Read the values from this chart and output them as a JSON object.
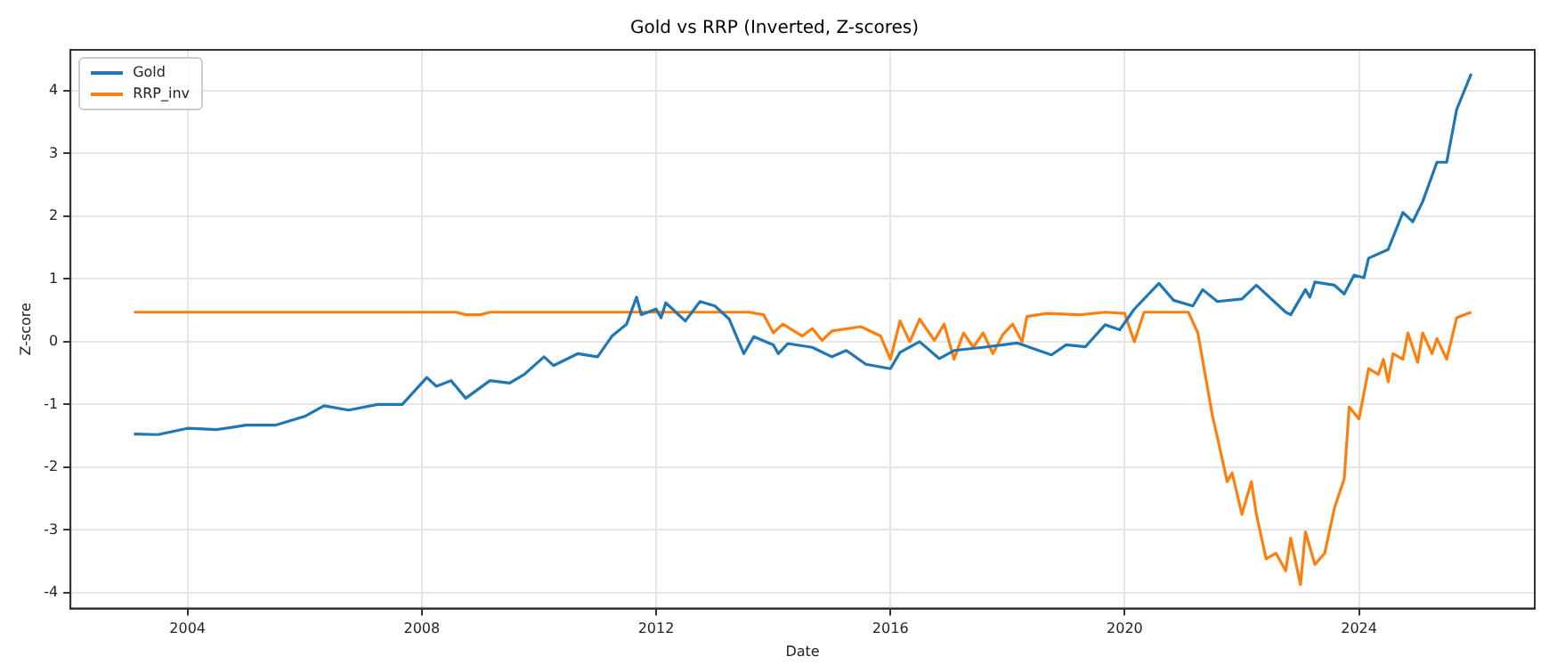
{
  "chart_data": {
    "type": "line",
    "title": "Gold vs RRP (Inverted, Z-scores)",
    "xlabel": "Date",
    "ylabel": "Z-score",
    "xlim": [
      "2002",
      "2027-01"
    ],
    "xticks": [
      "2004",
      "2008",
      "2012",
      "2016",
      "2020",
      "2024"
    ],
    "ylim": [
      -4.25,
      4.65
    ],
    "yticks": [
      -4,
      -3,
      -2,
      -1,
      0,
      1,
      2,
      3,
      4
    ],
    "grid": true,
    "legend": "top left",
    "marker": "none",
    "line_style": "solid",
    "series": [
      {
        "name": "Gold",
        "color": "#1f77b4",
        "x": [
          "2003-02",
          "2003-07",
          "2004-01",
          "2004-07",
          "2005-01",
          "2005-07",
          "2006-01",
          "2006-05",
          "2006-10",
          "2007-04",
          "2007-09",
          "2008-02",
          "2008-04",
          "2008-07",
          "2008-10",
          "2009-03",
          "2009-07",
          "2009-10",
          "2010-02",
          "2010-04",
          "2010-09",
          "2011-01",
          "2011-04",
          "2011-07",
          "2011-09",
          "2011-10",
          "2012-01",
          "2012-02",
          "2012-03",
          "2012-07",
          "2012-10",
          "2013-01",
          "2013-04",
          "2013-07",
          "2013-09",
          "2014-01",
          "2014-02",
          "2014-04",
          "2014-09",
          "2015-01",
          "2015-04",
          "2015-08",
          "2016-01",
          "2016-03",
          "2016-07",
          "2016-11",
          "2017-02",
          "2017-08",
          "2018-03",
          "2018-10",
          "2019-01",
          "2019-05",
          "2019-09",
          "2019-12",
          "2020-03",
          "2020-08",
          "2020-11",
          "2021-03",
          "2021-05",
          "2021-08",
          "2022-01",
          "2022-04",
          "2022-10",
          "2022-11",
          "2023-02",
          "2023-03",
          "2023-04",
          "2023-08",
          "2023-10",
          "2023-12",
          "2024-02",
          "2024-03",
          "2024-07",
          "2024-10",
          "2024-12",
          "2025-02",
          "2025-05",
          "2025-07",
          "2025-09",
          "2025-12"
        ],
        "values": [
          -1.47,
          -1.48,
          -1.38,
          -1.4,
          -1.33,
          -1.33,
          -1.19,
          -1.02,
          -1.09,
          -1.0,
          -1.0,
          -0.57,
          -0.71,
          -0.62,
          -0.9,
          -0.62,
          -0.66,
          -0.52,
          -0.24,
          -0.38,
          -0.19,
          -0.24,
          0.09,
          0.28,
          0.71,
          0.43,
          0.52,
          0.38,
          0.62,
          0.33,
          0.64,
          0.57,
          0.36,
          -0.19,
          0.08,
          -0.05,
          -0.19,
          -0.03,
          -0.09,
          -0.24,
          -0.14,
          -0.36,
          -0.43,
          -0.17,
          0.0,
          -0.27,
          -0.14,
          -0.09,
          -0.02,
          -0.21,
          -0.05,
          -0.08,
          0.27,
          0.19,
          0.52,
          0.93,
          0.66,
          0.57,
          0.83,
          0.64,
          0.68,
          0.9,
          0.47,
          0.43,
          0.83,
          0.71,
          0.95,
          0.9,
          0.76,
          1.06,
          1.02,
          1.33,
          1.47,
          2.06,
          1.91,
          2.23,
          2.86,
          2.86,
          3.7,
          4.27
        ]
      },
      {
        "name": "RRP_inv",
        "color": "#ff7f0e",
        "x": [
          "2003-02",
          "2008-08",
          "2008-10",
          "2009-01",
          "2009-03",
          "2013-08",
          "2013-11",
          "2014-01",
          "2014-03",
          "2014-07",
          "2014-09",
          "2014-11",
          "2015-01",
          "2015-07",
          "2015-11",
          "2016-01",
          "2016-03",
          "2016-05",
          "2016-07",
          "2016-10",
          "2016-12",
          "2017-02",
          "2017-04",
          "2017-06",
          "2017-08",
          "2017-10",
          "2017-12",
          "2018-02",
          "2018-04",
          "2018-05",
          "2018-09",
          "2019-04",
          "2019-09",
          "2020-01",
          "2020-03",
          "2020-05",
          "2021-02",
          "2021-04",
          "2021-07",
          "2021-08",
          "2021-10",
          "2021-11",
          "2022-01",
          "2022-03",
          "2022-04",
          "2022-06",
          "2022-08",
          "2022-10",
          "2022-11",
          "2023-01",
          "2023-02",
          "2023-04",
          "2023-06",
          "2023-08",
          "2023-10",
          "2023-11",
          "2024-01",
          "2024-03",
          "2024-05",
          "2024-06",
          "2024-07",
          "2024-08",
          "2024-10",
          "2024-11",
          "2025-01",
          "2025-02",
          "2025-04",
          "2025-05",
          "2025-07",
          "2025-09",
          "2025-12"
        ],
        "values": [
          0.47,
          0.47,
          0.43,
          0.43,
          0.47,
          0.47,
          0.43,
          0.14,
          0.28,
          0.09,
          0.21,
          0.02,
          0.17,
          0.24,
          0.09,
          -0.28,
          0.33,
          0.0,
          0.36,
          0.02,
          0.28,
          -0.28,
          0.14,
          -0.09,
          0.14,
          -0.19,
          0.11,
          0.28,
          0.0,
          0.4,
          0.45,
          0.43,
          0.47,
          0.45,
          0.0,
          0.47,
          0.47,
          0.14,
          -1.18,
          -1.52,
          -2.23,
          -2.09,
          -2.75,
          -2.23,
          -2.75,
          -3.46,
          -3.37,
          -3.65,
          -3.13,
          -3.87,
          -3.03,
          -3.55,
          -3.37,
          -2.65,
          -2.18,
          -1.04,
          -1.23,
          -0.43,
          -0.52,
          -0.28,
          -0.64,
          -0.19,
          -0.28,
          0.14,
          -0.33,
          0.14,
          -0.19,
          0.05,
          -0.28,
          0.38,
          0.47
        ]
      }
    ]
  }
}
